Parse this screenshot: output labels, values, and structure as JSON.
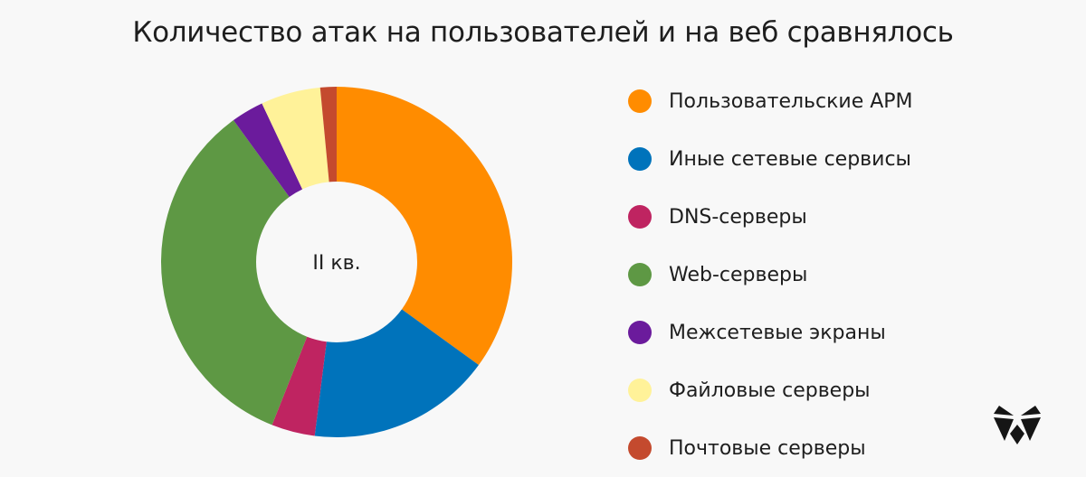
{
  "chart_data": {
    "type": "pie",
    "title": "Количество атак на пользователей и на веб сравнялось",
    "center_label": "II кв.",
    "series": [
      {
        "name": "Пользовательские АРМ",
        "value": 35,
        "color": "#ff8c00"
      },
      {
        "name": "Иные сетевые сервисы",
        "value": 17,
        "color": "#0073bb"
      },
      {
        "name": "DNS-серверы",
        "value": 4,
        "color": "#bf2461"
      },
      {
        "name": "Web-серверы",
        "value": 34,
        "color": "#5e9844"
      },
      {
        "name": "Межсетевые экраны",
        "value": 3,
        "color": "#6b1b9c"
      },
      {
        "name": "Файловые серверы",
        "value": 5.5,
        "color": "#fff299"
      },
      {
        "name": "Почтовые серверы",
        "value": 1.5,
        "color": "#c44a2e"
      }
    ],
    "legend_position": "right"
  },
  "logo": {
    "icon": "fox-head-icon",
    "color": "#151515"
  }
}
